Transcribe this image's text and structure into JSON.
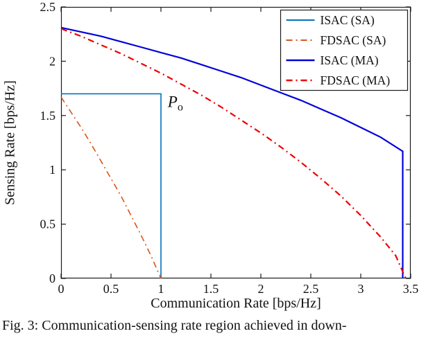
{
  "figure": {
    "caption": "Fig. 3: Communication-sensing rate region achieved in down-"
  },
  "chart_data": {
    "type": "line",
    "title": "",
    "xlabel": "Communication Rate [bps/Hz]",
    "ylabel": "Sensing Rate [bps/Hz]",
    "xlim": [
      0,
      3.5
    ],
    "ylim": [
      0,
      2.5
    ],
    "xticks": [
      0,
      0.5,
      1,
      1.5,
      2,
      2.5,
      3,
      3.5
    ],
    "yticks": [
      0,
      0.5,
      1,
      1.5,
      2,
      2.5
    ],
    "grid": false,
    "background": "#ffffff",
    "axis_color": "#1a1a1a",
    "legend": {
      "position": "top-right",
      "border": true
    },
    "annotations": [
      {
        "label": "P",
        "subscript": "o",
        "x": 1.04,
        "y": 1.58
      }
    ],
    "series": [
      {
        "name": "ISAC (SA)",
        "color": "#0072BD",
        "style": "solid",
        "width": 1.6,
        "points": [
          [
            0,
            1.7
          ],
          [
            1,
            1.7
          ],
          [
            1,
            0
          ]
        ]
      },
      {
        "name": "FDSAC (SA)",
        "color": "#D95319",
        "style": "dashdot",
        "width": 1.6,
        "points": [
          [
            0,
            1.67
          ],
          [
            0.1,
            1.53
          ],
          [
            0.2,
            1.39
          ],
          [
            0.3,
            1.24
          ],
          [
            0.4,
            1.08
          ],
          [
            0.5,
            0.92
          ],
          [
            0.6,
            0.76
          ],
          [
            0.7,
            0.58
          ],
          [
            0.8,
            0.4
          ],
          [
            0.9,
            0.21
          ],
          [
            1,
            0
          ]
        ]
      },
      {
        "name": "ISAC (MA)",
        "color": "#0000DD",
        "style": "solid",
        "width": 2.2,
        "points": [
          [
            0,
            2.31
          ],
          [
            0.2,
            2.27
          ],
          [
            0.4,
            2.23
          ],
          [
            0.6,
            2.18
          ],
          [
            0.8,
            2.13
          ],
          [
            1,
            2.08
          ],
          [
            1.2,
            2.03
          ],
          [
            1.4,
            1.97
          ],
          [
            1.6,
            1.91
          ],
          [
            1.8,
            1.85
          ],
          [
            2,
            1.78
          ],
          [
            2.2,
            1.71
          ],
          [
            2.4,
            1.64
          ],
          [
            2.6,
            1.56
          ],
          [
            2.8,
            1.48
          ],
          [
            3,
            1.39
          ],
          [
            3.2,
            1.3
          ],
          [
            3.42,
            1.17
          ],
          [
            3.42,
            0
          ]
        ]
      },
      {
        "name": "FDSAC (MA)",
        "color": "#EE0000",
        "style": "dashdot",
        "width": 2.2,
        "points": [
          [
            0,
            2.3
          ],
          [
            0.2,
            2.23
          ],
          [
            0.4,
            2.15
          ],
          [
            0.6,
            2.07
          ],
          [
            0.8,
            1.98
          ],
          [
            1,
            1.89
          ],
          [
            1.2,
            1.79
          ],
          [
            1.4,
            1.69
          ],
          [
            1.6,
            1.58
          ],
          [
            1.8,
            1.46
          ],
          [
            2,
            1.34
          ],
          [
            2.2,
            1.21
          ],
          [
            2.4,
            1.07
          ],
          [
            2.6,
            0.92
          ],
          [
            2.8,
            0.76
          ],
          [
            3,
            0.58
          ],
          [
            3.2,
            0.38
          ],
          [
            3.35,
            0.21
          ],
          [
            3.45,
            0
          ]
        ]
      }
    ]
  }
}
